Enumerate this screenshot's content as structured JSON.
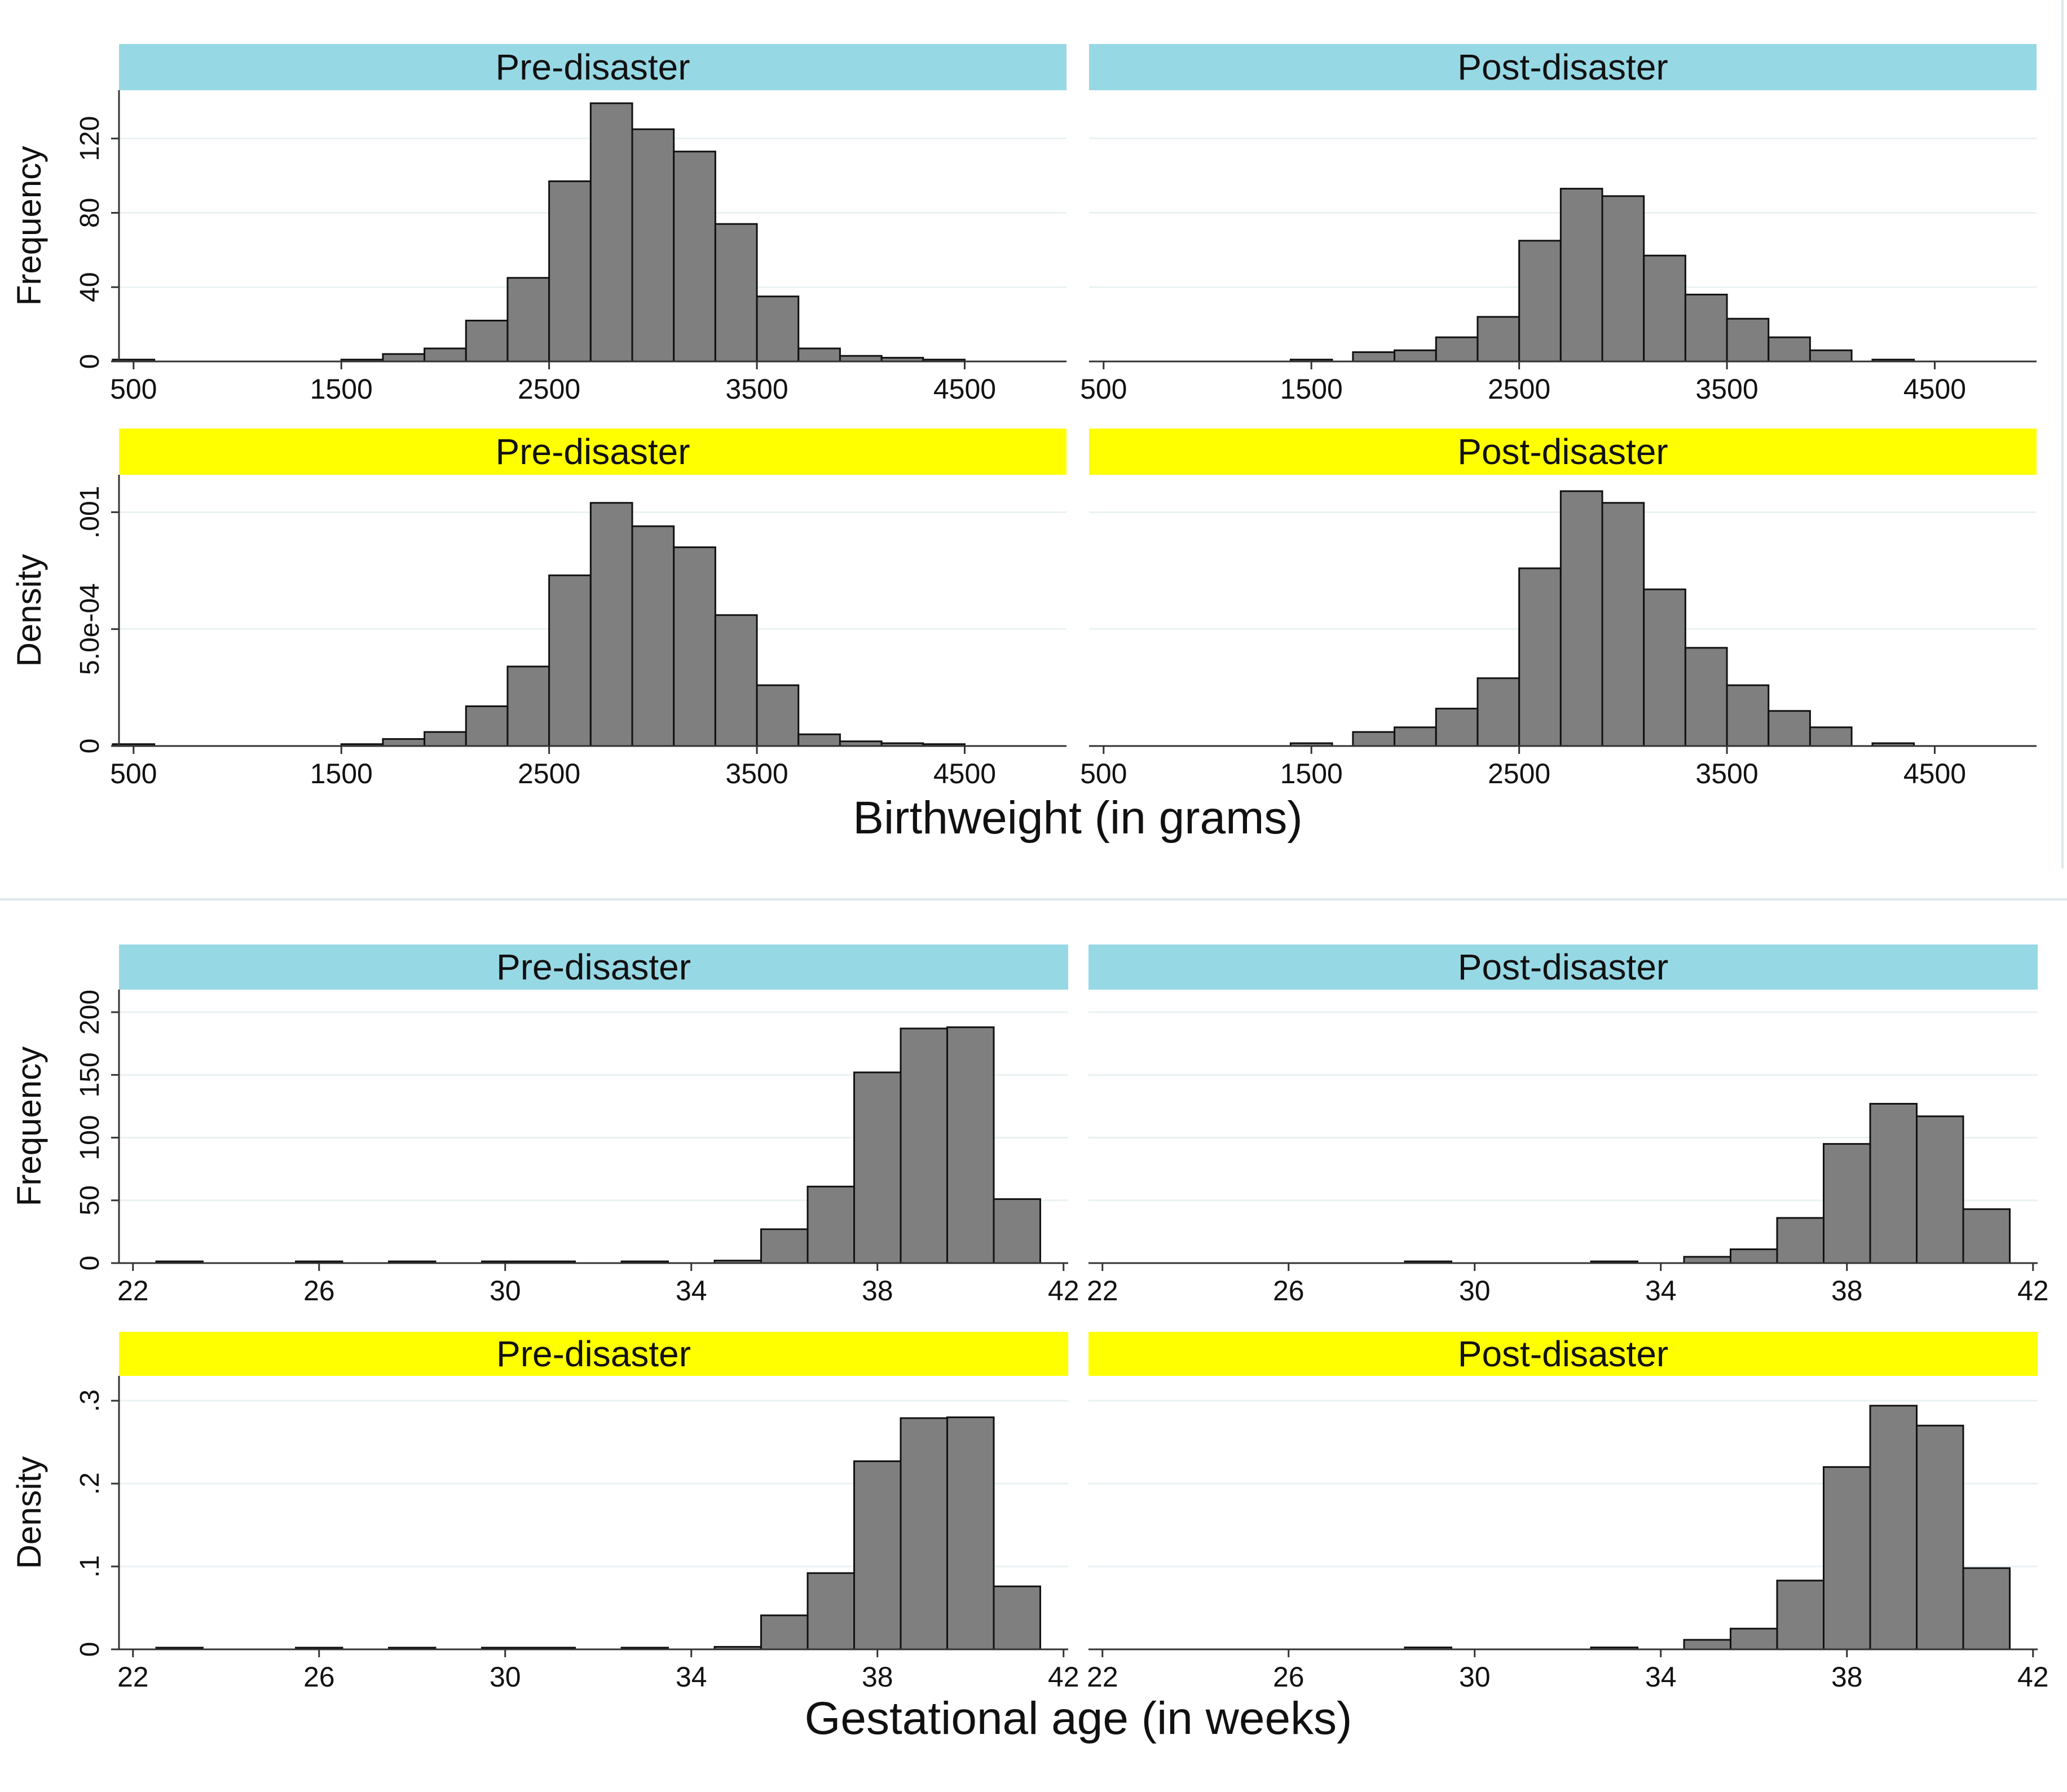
{
  "colors": {
    "frequency_header": "#97d8e5",
    "density_header": "#ffff00",
    "bar_fill": "#7f7f7f",
    "bar_stroke": "#111111",
    "grid": "#eaf2f3",
    "separator": "#dde8ea"
  },
  "chart_data": [
    {
      "type": "bar",
      "figure": "birthweight",
      "xlabel": "Birthweight (in grams)",
      "xlim": [
        430,
        4990
      ],
      "xticks": [
        500,
        1500,
        2500,
        3500,
        4500
      ],
      "bin_width": 200,
      "ylabel_frequency": "Frequency",
      "ylabel_density": "Density",
      "panels": [
        {
          "id": "bw-freq-pre",
          "title": "Pre-disaster",
          "measure": "frequency",
          "ylim": [
            0,
            146
          ],
          "yticks": [
            "0",
            "40",
            "80",
            "120"
          ],
          "ytick_values": [
            0,
            40,
            80,
            120
          ],
          "bin_starts": [
            400,
            1500,
            1700,
            1900,
            2100,
            2300,
            2500,
            2700,
            2900,
            3100,
            3300,
            3500,
            3700,
            3900,
            4100,
            4300
          ],
          "values": [
            1,
            1,
            4,
            7,
            22,
            45,
            97,
            139,
            125,
            113,
            74,
            35,
            7,
            3,
            2,
            1
          ]
        },
        {
          "id": "bw-freq-post",
          "title": "Post-disaster",
          "measure": "frequency",
          "ylim": [
            0,
            146
          ],
          "yticks": [
            "0",
            "40",
            "80",
            "120"
          ],
          "ytick_values": [
            0,
            40,
            80,
            120
          ],
          "bin_starts": [
            1400,
            1700,
            1900,
            2100,
            2300,
            2500,
            2700,
            2900,
            3100,
            3300,
            3500,
            3700,
            3900,
            4200
          ],
          "values": [
            1,
            5,
            6,
            13,
            24,
            65,
            93,
            89,
            57,
            36,
            23,
            13,
            6,
            1
          ]
        },
        {
          "id": "bw-dens-pre",
          "title": "Pre-disaster",
          "measure": "density",
          "ylim": [
            0,
            0.00116
          ],
          "yticks": [
            "0",
            "5.0e-04",
            ".001"
          ],
          "ytick_values": [
            0,
            0.0005,
            0.001
          ],
          "bin_starts": [
            400,
            1500,
            1700,
            1900,
            2100,
            2300,
            2500,
            2700,
            2900,
            3100,
            3300,
            3500,
            3700,
            3900,
            4100,
            4300
          ],
          "values": [
            8e-06,
            8e-06,
            3e-05,
            6e-05,
            0.00017,
            0.00034,
            0.00073,
            0.00104,
            0.00094,
            0.00085,
            0.00056,
            0.00026,
            5e-05,
            2e-05,
            1.2e-05,
            8e-06
          ]
        },
        {
          "id": "bw-dens-post",
          "title": "Post-disaster",
          "measure": "density",
          "ylim": [
            0,
            0.00116
          ],
          "yticks": [
            "0",
            "5.0e-04",
            ".001"
          ],
          "ytick_values": [
            0,
            0.0005,
            0.001
          ],
          "bin_starts": [
            1400,
            1700,
            1900,
            2100,
            2300,
            2500,
            2700,
            2900,
            3100,
            3300,
            3500,
            3700,
            3900,
            4200
          ],
          "values": [
            1.2e-05,
            6e-05,
            8e-05,
            0.00016,
            0.00029,
            0.00076,
            0.00109,
            0.00104,
            0.00067,
            0.00042,
            0.00026,
            0.00015,
            8e-05,
            1.2e-05
          ]
        }
      ]
    },
    {
      "type": "bar",
      "figure": "gestational_age",
      "xlabel": "Gestational age (in weeks)",
      "xlim": [
        21.7,
        42.1
      ],
      "xticks": [
        22,
        26,
        30,
        34,
        38,
        42
      ],
      "bin_width": 1,
      "ylabel_frequency": "Frequency",
      "ylabel_density": "Density",
      "panels": [
        {
          "id": "ga-freq-pre",
          "title": "Pre-disaster",
          "measure": "frequency",
          "ylim": [
            0,
            218
          ],
          "yticks": [
            "0",
            "50",
            "100",
            "150",
            "200"
          ],
          "ytick_values": [
            0,
            50,
            100,
            150,
            200
          ],
          "bin_starts": [
            22.5,
            25.5,
            27.5,
            29.5,
            30.5,
            32.5,
            34.5,
            35.5,
            36.5,
            37.5,
            38.5,
            39.5,
            40.5
          ],
          "values": [
            1,
            1,
            1,
            1,
            1,
            1,
            2,
            27,
            61,
            152,
            187,
            188,
            51
          ]
        },
        {
          "id": "ga-freq-post",
          "title": "Post-disaster",
          "measure": "frequency",
          "ylim": [
            0,
            218
          ],
          "yticks": [
            "0",
            "50",
            "100",
            "150",
            "200"
          ],
          "ytick_values": [
            0,
            50,
            100,
            150,
            200
          ],
          "bin_starts": [
            28.5,
            32.5,
            34.5,
            35.5,
            36.5,
            37.5,
            38.5,
            39.5,
            40.5
          ],
          "values": [
            1,
            1,
            5,
            11,
            36,
            95,
            127,
            117,
            43
          ]
        },
        {
          "id": "ga-dens-pre",
          "title": "Pre-disaster",
          "measure": "density",
          "ylim": [
            0,
            0.33
          ],
          "yticks": [
            "0",
            ".1",
            ".2",
            ".3"
          ],
          "ytick_values": [
            0,
            0.1,
            0.2,
            0.3
          ],
          "bin_starts": [
            22.5,
            25.5,
            27.5,
            29.5,
            30.5,
            32.5,
            34.5,
            35.5,
            36.5,
            37.5,
            38.5,
            39.5,
            40.5
          ],
          "values": [
            0.0015,
            0.0015,
            0.0015,
            0.0015,
            0.0015,
            0.0015,
            0.003,
            0.041,
            0.092,
            0.227,
            0.279,
            0.28,
            0.076
          ]
        },
        {
          "id": "ga-dens-post",
          "title": "Post-disaster",
          "measure": "density",
          "ylim": [
            0,
            0.33
          ],
          "yticks": [
            "0",
            ".1",
            ".2",
            ".3"
          ],
          "ytick_values": [
            0,
            0.1,
            0.2,
            0.3
          ],
          "bin_starts": [
            28.5,
            32.5,
            34.5,
            35.5,
            36.5,
            37.5,
            38.5,
            39.5,
            40.5
          ],
          "values": [
            0.0023,
            0.0023,
            0.0115,
            0.025,
            0.083,
            0.22,
            0.294,
            0.27,
            0.098
          ]
        }
      ]
    }
  ]
}
